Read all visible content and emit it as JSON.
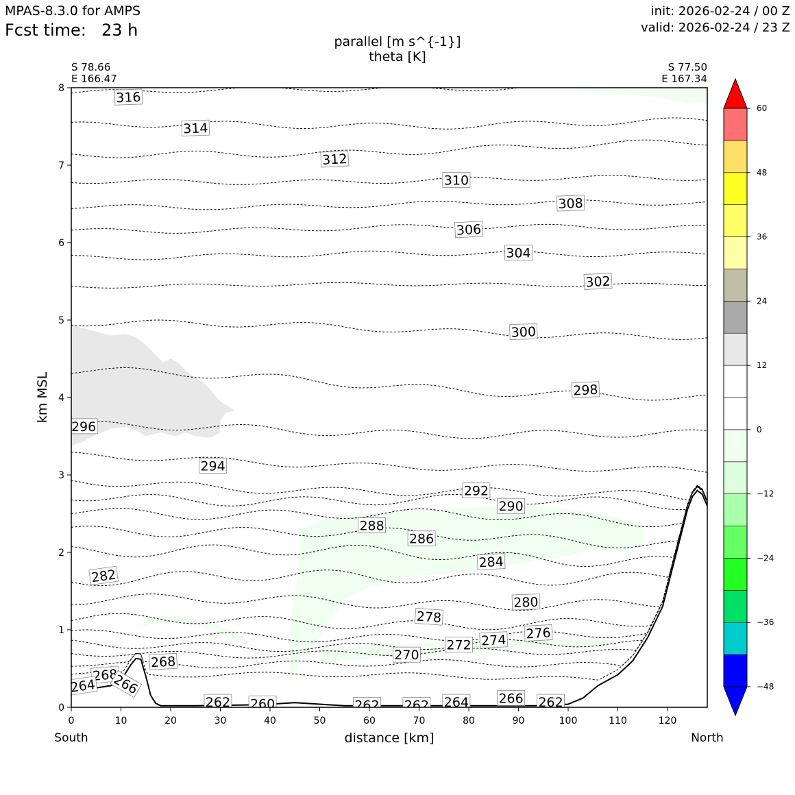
{
  "header": {
    "model": "MPAS-8.3.0 for AMPS",
    "fcst_label": "Fcst time:",
    "fcst_value": "23 h",
    "init": "init: 2026-02-24 / 00 Z",
    "valid": "valid: 2026-02-24 / 23 Z"
  },
  "chart_data": {
    "type": "cross-section contour",
    "title_line1": "parallel [m s^{-1}]",
    "title_line2": "theta [K]",
    "xlabel": "distance [km]",
    "ylabel": "km MSL",
    "xlim": [
      0,
      128
    ],
    "ylim": [
      0,
      8
    ],
    "xticks": [
      "0",
      "10",
      "20",
      "30",
      "40",
      "50",
      "60",
      "70",
      "80",
      "90",
      "100",
      "110",
      "120"
    ],
    "yticks": [
      "0",
      "1",
      "2",
      "3",
      "4",
      "5",
      "6",
      "7",
      "8"
    ],
    "start_point": {
      "lat": "S 78.66",
      "lon": "E 166.47",
      "dir": "South"
    },
    "end_point": {
      "lat": "S 77.50",
      "lon": "E 167.34",
      "dir": "North"
    },
    "colorbar": {
      "tick_labels": [
        "60",
        "48",
        "36",
        "24",
        "12",
        "0",
        "−12",
        "−24",
        "−36",
        "−48"
      ],
      "tick_values": [
        60,
        48,
        36,
        24,
        12,
        0,
        -12,
        -24,
        -36,
        -48
      ],
      "levels": [
        -48,
        -42,
        -36,
        -30,
        -24,
        -18,
        -12,
        -6,
        0,
        6,
        12,
        18,
        24,
        30,
        36,
        42,
        48,
        54,
        60
      ],
      "colors": [
        "#0000ff",
        "#00cccc",
        "#00e066",
        "#22ff22",
        "#66ff66",
        "#aaffaa",
        "#ddffdd",
        "#f0fff0",
        "#ffffff",
        "#ffffff",
        "#e8e8e8",
        "#aaaaaa",
        "#bfbfa8",
        "#ffffaa",
        "#ffff66",
        "#ffff22",
        "#ffe066",
        "#ff7070",
        "#ff0000"
      ],
      "under_color": "#0000ff",
      "over_color": "#ff0000"
    },
    "terrain": [
      [
        0,
        0.22
      ],
      [
        5,
        0.25
      ],
      [
        8,
        0.28
      ],
      [
        10,
        0.35
      ],
      [
        12,
        0.55
      ],
      [
        13,
        0.63
      ],
      [
        14,
        0.62
      ],
      [
        15,
        0.4
      ],
      [
        16,
        0.15
      ],
      [
        17,
        0.05
      ],
      [
        18,
        0.02
      ],
      [
        25,
        0.02
      ],
      [
        35,
        0.03
      ],
      [
        40,
        0.04
      ],
      [
        45,
        0.06
      ],
      [
        50,
        0.04
      ],
      [
        55,
        0.02
      ],
      [
        60,
        0.02
      ],
      [
        80,
        0.02
      ],
      [
        95,
        0.02
      ],
      [
        100,
        0.04
      ],
      [
        103,
        0.12
      ],
      [
        106,
        0.28
      ],
      [
        110,
        0.42
      ],
      [
        113,
        0.6
      ],
      [
        116,
        0.9
      ],
      [
        119,
        1.3
      ],
      [
        121,
        1.8
      ],
      [
        123,
        2.3
      ],
      [
        124,
        2.55
      ],
      [
        125,
        2.72
      ],
      [
        126,
        2.8
      ],
      [
        127,
        2.75
      ],
      [
        128,
        2.6
      ]
    ],
    "theta_lines": [
      {
        "v": 316,
        "base": 7.93,
        "amp": 0.03,
        "slope": 0.12
      },
      {
        "v": 314,
        "base": 7.5,
        "amp": 0.04,
        "slope": 0.05
      },
      {
        "v": 312,
        "base": 7.1,
        "amp": 0.04,
        "slope": 0.18
      },
      {
        "v": 310,
        "base": 6.78,
        "amp": 0.03,
        "slope": 0.05
      },
      {
        "v": 308,
        "base": 6.46,
        "amp": 0.03,
        "slope": 0.06
      },
      {
        "v": 306,
        "base": 6.16,
        "amp": 0.03,
        "slope": 0.05
      },
      {
        "v": 304,
        "base": 5.82,
        "amp": 0.03,
        "slope": 0.05
      },
      {
        "v": 302,
        "base": 5.44,
        "amp": 0.02,
        "slope": 0.03
      },
      {
        "v": 300,
        "base": 4.98,
        "amp": 0.04,
        "slope": -0.2
      },
      {
        "v": 298,
        "base": 4.35,
        "amp": 0.05,
        "slope": -0.38
      },
      {
        "v": 296,
        "base": 3.62,
        "amp": 0.05,
        "slope": -0.12
      },
      {
        "v": 294,
        "base": 3.23,
        "amp": 0.04,
        "slope": -0.2
      },
      {
        "v": 292,
        "base": 2.9,
        "amp": 0.05,
        "slope": -0.2
      },
      {
        "v": 290,
        "base": 2.72,
        "amp": 0.06,
        "slope": -0.1
      },
      {
        "v": 288,
        "base": 2.55,
        "amp": 0.06,
        "slope": -0.15
      },
      {
        "v": 286,
        "base": 2.32,
        "amp": 0.06,
        "slope": -0.2
      },
      {
        "v": 284,
        "base": 2.05,
        "amp": 0.07,
        "slope": -0.15
      },
      {
        "v": 282,
        "base": 1.65,
        "amp": 0.07,
        "slope": 0.05
      },
      {
        "v": 280,
        "base": 1.38,
        "amp": 0.06,
        "slope": -0.05
      },
      {
        "v": 278,
        "base": 1.12,
        "amp": 0.06,
        "slope": -0.05
      },
      {
        "v": 276,
        "base": 0.92,
        "amp": 0.05,
        "slope": 0.0
      },
      {
        "v": 274,
        "base": 0.8,
        "amp": 0.05,
        "slope": 0.0
      },
      {
        "v": 272,
        "base": 0.7,
        "amp": 0.04,
        "slope": 0.0
      },
      {
        "v": 270,
        "base": 0.58,
        "amp": 0.04,
        "slope": -0.05
      },
      {
        "v": 268,
        "base": 0.45,
        "amp": 0.03,
        "slope": -0.1
      }
    ],
    "contour_labels": [
      {
        "text": "316",
        "x": 11.5,
        "y": 7.88,
        "rot": -2
      },
      {
        "text": "314",
        "x": 25.0,
        "y": 7.48,
        "rot": -2
      },
      {
        "text": "312",
        "x": 53.0,
        "y": 7.08,
        "rot": -3
      },
      {
        "text": "310",
        "x": 77.5,
        "y": 6.81,
        "rot": 0
      },
      {
        "text": "308",
        "x": 100.5,
        "y": 6.51,
        "rot": -2
      },
      {
        "text": "306",
        "x": 80.0,
        "y": 6.17,
        "rot": -3
      },
      {
        "text": "304",
        "x": 90.0,
        "y": 5.87,
        "rot": 0
      },
      {
        "text": "302",
        "x": 106.0,
        "y": 5.5,
        "rot": -3
      },
      {
        "text": "300",
        "x": 91.0,
        "y": 4.85,
        "rot": -2
      },
      {
        "text": "298",
        "x": 103.5,
        "y": 4.1,
        "rot": -3
      },
      {
        "text": "296",
        "x": 2.5,
        "y": 3.63,
        "rot": 0
      },
      {
        "text": "294",
        "x": 28.5,
        "y": 3.12,
        "rot": 0
      },
      {
        "text": "292",
        "x": 81.5,
        "y": 2.8,
        "rot": 0
      },
      {
        "text": "290",
        "x": 88.5,
        "y": 2.6,
        "rot": 0
      },
      {
        "text": "288",
        "x": 60.5,
        "y": 2.35,
        "rot": 0
      },
      {
        "text": "286",
        "x": 70.5,
        "y": 2.18,
        "rot": 0
      },
      {
        "text": "284",
        "x": 84.5,
        "y": 1.88,
        "rot": -3
      },
      {
        "text": "282",
        "x": 6.5,
        "y": 1.7,
        "rot": -8
      },
      {
        "text": "280",
        "x": 91.5,
        "y": 1.36,
        "rot": -2
      },
      {
        "text": "278",
        "x": 72.0,
        "y": 1.17,
        "rot": 4
      },
      {
        "text": "276",
        "x": 94.0,
        "y": 0.96,
        "rot": -3
      },
      {
        "text": "274",
        "x": 85.0,
        "y": 0.87,
        "rot": -3
      },
      {
        "text": "272",
        "x": 78.0,
        "y": 0.81,
        "rot": 0
      },
      {
        "text": "270",
        "x": 67.5,
        "y": 0.68,
        "rot": 0
      },
      {
        "text": "268",
        "x": 18.5,
        "y": 0.59,
        "rot": -3
      },
      {
        "text": "268",
        "x": 6.8,
        "y": 0.42,
        "rot": -5
      },
      {
        "text": "266",
        "x": 11.0,
        "y": 0.3,
        "rot": 30
      },
      {
        "text": "264",
        "x": 2.3,
        "y": 0.28,
        "rot": -8
      },
      {
        "text": "262",
        "x": 29.5,
        "y": 0.07,
        "rot": 0
      },
      {
        "text": "260",
        "x": 38.5,
        "y": 0.05,
        "rot": 0
      },
      {
        "text": "262",
        "x": 59.5,
        "y": 0.03,
        "rot": 0
      },
      {
        "text": "262",
        "x": 69.5,
        "y": 0.03,
        "rot": 0
      },
      {
        "text": "264",
        "x": 77.5,
        "y": 0.07,
        "rot": 0
      },
      {
        "text": "266",
        "x": 88.5,
        "y": 0.12,
        "rot": 0
      },
      {
        "text": "262",
        "x": 96.5,
        "y": 0.07,
        "rot": 0
      }
    ],
    "wind_regions": [
      {
        "name": "positive-wind-region",
        "level_color": "#e8e8e8",
        "points": [
          [
            0,
            4.95
          ],
          [
            2,
            4.9
          ],
          [
            5,
            4.85
          ],
          [
            8,
            4.8
          ],
          [
            11,
            4.82
          ],
          [
            13,
            4.78
          ],
          [
            15,
            4.68
          ],
          [
            17,
            4.55
          ],
          [
            18.5,
            4.45
          ],
          [
            20,
            4.5
          ],
          [
            21.5,
            4.45
          ],
          [
            23,
            4.35
          ],
          [
            25,
            4.25
          ],
          [
            26.5,
            4.2
          ],
          [
            28,
            4.1
          ],
          [
            30,
            3.95
          ],
          [
            32,
            3.87
          ],
          [
            33,
            3.83
          ],
          [
            31,
            3.8
          ],
          [
            30,
            3.7
          ],
          [
            30,
            3.55
          ],
          [
            28,
            3.48
          ],
          [
            25,
            3.5
          ],
          [
            23,
            3.55
          ],
          [
            21,
            3.5
          ],
          [
            18,
            3.55
          ],
          [
            15,
            3.5
          ],
          [
            13,
            3.58
          ],
          [
            11,
            3.62
          ],
          [
            8,
            3.6
          ],
          [
            5,
            3.52
          ],
          [
            2,
            3.42
          ],
          [
            0,
            3.38
          ]
        ]
      },
      {
        "name": "negative-wind-region-upper-right",
        "level_color": "#f0fff0",
        "points": [
          [
            101,
            8.0
          ],
          [
            128,
            8.0
          ],
          [
            128,
            7.8
          ],
          [
            124,
            7.8
          ],
          [
            118,
            7.88
          ],
          [
            110,
            7.92
          ],
          [
            104,
            7.96
          ]
        ]
      },
      {
        "name": "negative-wind-region-mid",
        "level_color": "#f0fff0",
        "points": [
          [
            46,
            2.3
          ],
          [
            52,
            2.45
          ],
          [
            60,
            2.5
          ],
          [
            70,
            2.55
          ],
          [
            80,
            2.58
          ],
          [
            90,
            2.6
          ],
          [
            100,
            2.56
          ],
          [
            110,
            2.45
          ],
          [
            115,
            2.35
          ],
          [
            115,
            2.1
          ],
          [
            110,
            2.0
          ],
          [
            105,
            2.05
          ],
          [
            100,
            1.95
          ],
          [
            90,
            1.85
          ],
          [
            80,
            1.75
          ],
          [
            70,
            1.7
          ],
          [
            60,
            1.55
          ],
          [
            55,
            1.4
          ],
          [
            52,
            1.1
          ],
          [
            50,
            0.9
          ],
          [
            48,
            0.75
          ],
          [
            46,
            0.6
          ],
          [
            45,
            0.4
          ],
          [
            46,
            0.3
          ],
          [
            44,
            0.45
          ],
          [
            44,
            0.9
          ],
          [
            45,
            1.5
          ],
          [
            46,
            1.9
          ]
        ]
      },
      {
        "name": "negative-wind-region-low",
        "level_color": "#f0fff0",
        "points": [
          [
            14,
            1.05
          ],
          [
            18,
            1.1
          ],
          [
            23,
            1.1
          ],
          [
            28,
            1.0
          ],
          [
            32,
            0.9
          ],
          [
            35,
            0.8
          ],
          [
            36,
            0.85
          ],
          [
            33,
            0.98
          ],
          [
            28,
            1.08
          ],
          [
            22,
            1.18
          ],
          [
            17,
            1.18
          ],
          [
            15,
            1.12
          ]
        ]
      },
      {
        "name": "negative-wind-region-lower-mid",
        "level_color": "#f0fff0",
        "points": [
          [
            50,
            0.75
          ],
          [
            60,
            0.8
          ],
          [
            70,
            0.82
          ],
          [
            80,
            0.84
          ],
          [
            90,
            0.86
          ],
          [
            100,
            0.88
          ],
          [
            108,
            0.92
          ],
          [
            108,
            0.82
          ],
          [
            100,
            0.78
          ],
          [
            90,
            0.76
          ],
          [
            80,
            0.72
          ],
          [
            70,
            0.68
          ],
          [
            60,
            0.62
          ],
          [
            50,
            0.6
          ]
        ]
      }
    ]
  }
}
